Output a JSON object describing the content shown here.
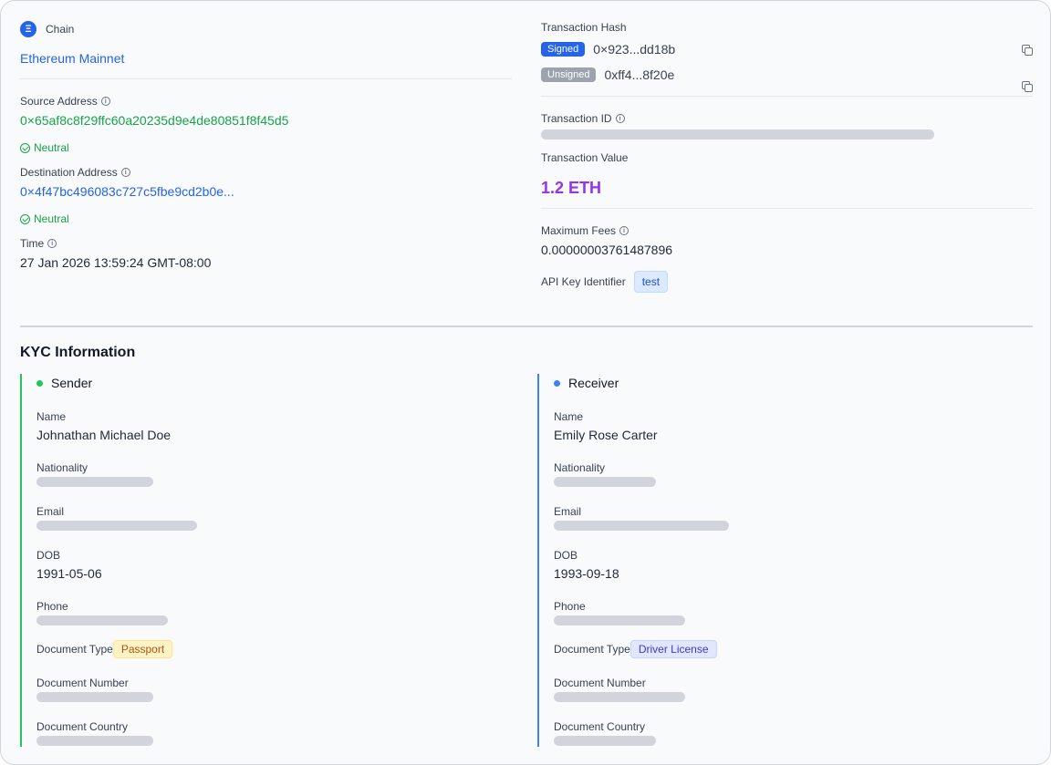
{
  "chain": {
    "label": "Chain",
    "icon_glyph": "Ξ",
    "value": "Ethereum Mainnet"
  },
  "source": {
    "label": "Source Address",
    "address": "0×65af8c8f29ffc60a20235d9e4de80851f8f45d5",
    "status": "Neutral"
  },
  "destination": {
    "label": "Destination Address",
    "address": "0×4f47bc496083c727c5fbe9cd2b0e...",
    "status": "Neutral"
  },
  "time": {
    "label": "Time",
    "value": "27 Jan 2026 13:59:24 GMT-08:00"
  },
  "tx_hash": {
    "label": "Transaction Hash",
    "signed_badge": "Signed",
    "signed_hash": "0×923...dd18b",
    "unsigned_badge": "Unsigned",
    "unsigned_hash": "0xff4...8f20e"
  },
  "tx_id": {
    "label": "Transaction ID"
  },
  "tx_value": {
    "label": "Transaction Value",
    "value": "1.2 ETH"
  },
  "max_fees": {
    "label": "Maximum Fees",
    "value": "0.00000003761487896"
  },
  "api_key": {
    "label": "API Key Identifier",
    "value": "test"
  },
  "kyc": {
    "title": "KYC Information",
    "sender": {
      "title": "Sender",
      "name_label": "Name",
      "name": "Johnathan Michael Doe",
      "nationality_label": "Nationality",
      "email_label": "Email",
      "dob_label": "DOB",
      "dob": "1991-05-06",
      "phone_label": "Phone",
      "doc_type_label": "Document Type",
      "doc_type": "Passport",
      "doc_number_label": "Document Number",
      "doc_country_label": "Document Country"
    },
    "receiver": {
      "title": "Receiver",
      "name_label": "Name",
      "name": "Emily Rose Carter",
      "nationality_label": "Nationality",
      "email_label": "Email",
      "dob_label": "DOB",
      "dob": "1993-09-18",
      "phone_label": "Phone",
      "doc_type_label": "Document Type",
      "doc_type": "Driver License",
      "doc_number_label": "Document Number",
      "doc_country_label": "Document Country"
    }
  },
  "colors": {
    "accent_blue": "#2563eb",
    "address_green": "#16a34a",
    "eth_purple": "#9333ea",
    "sender_bar": "#22c55e",
    "receiver_bar": "#3b82f6"
  }
}
